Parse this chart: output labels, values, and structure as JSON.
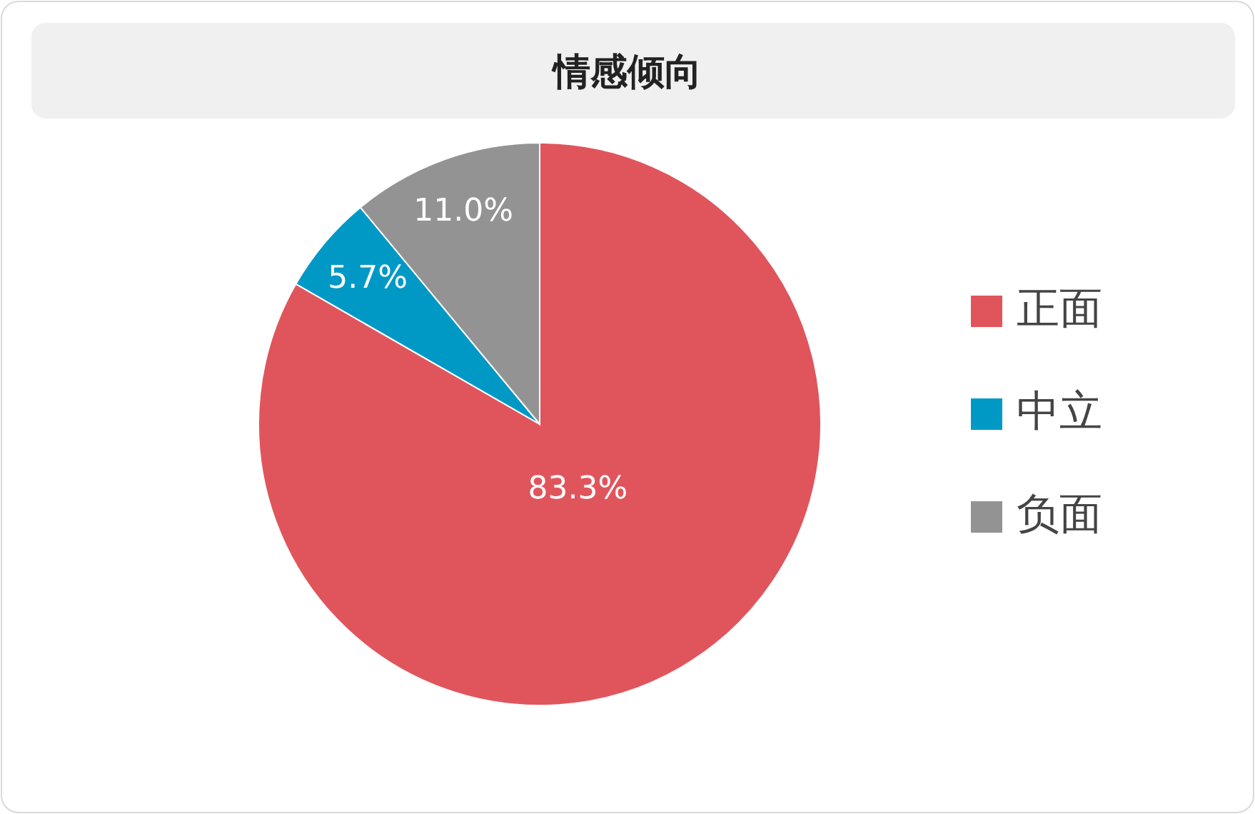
{
  "chart_data": {
    "type": "pie",
    "title": "情感倾向",
    "categories": [
      "正面",
      "中立",
      "负面"
    ],
    "values": [
      83.3,
      5.7,
      11.0
    ],
    "colors": [
      "#e0555c",
      "#0099c6",
      "#939393"
    ],
    "value_labels": [
      "83.3%",
      "5.7%",
      "11.0%"
    ],
    "legend": "right"
  }
}
